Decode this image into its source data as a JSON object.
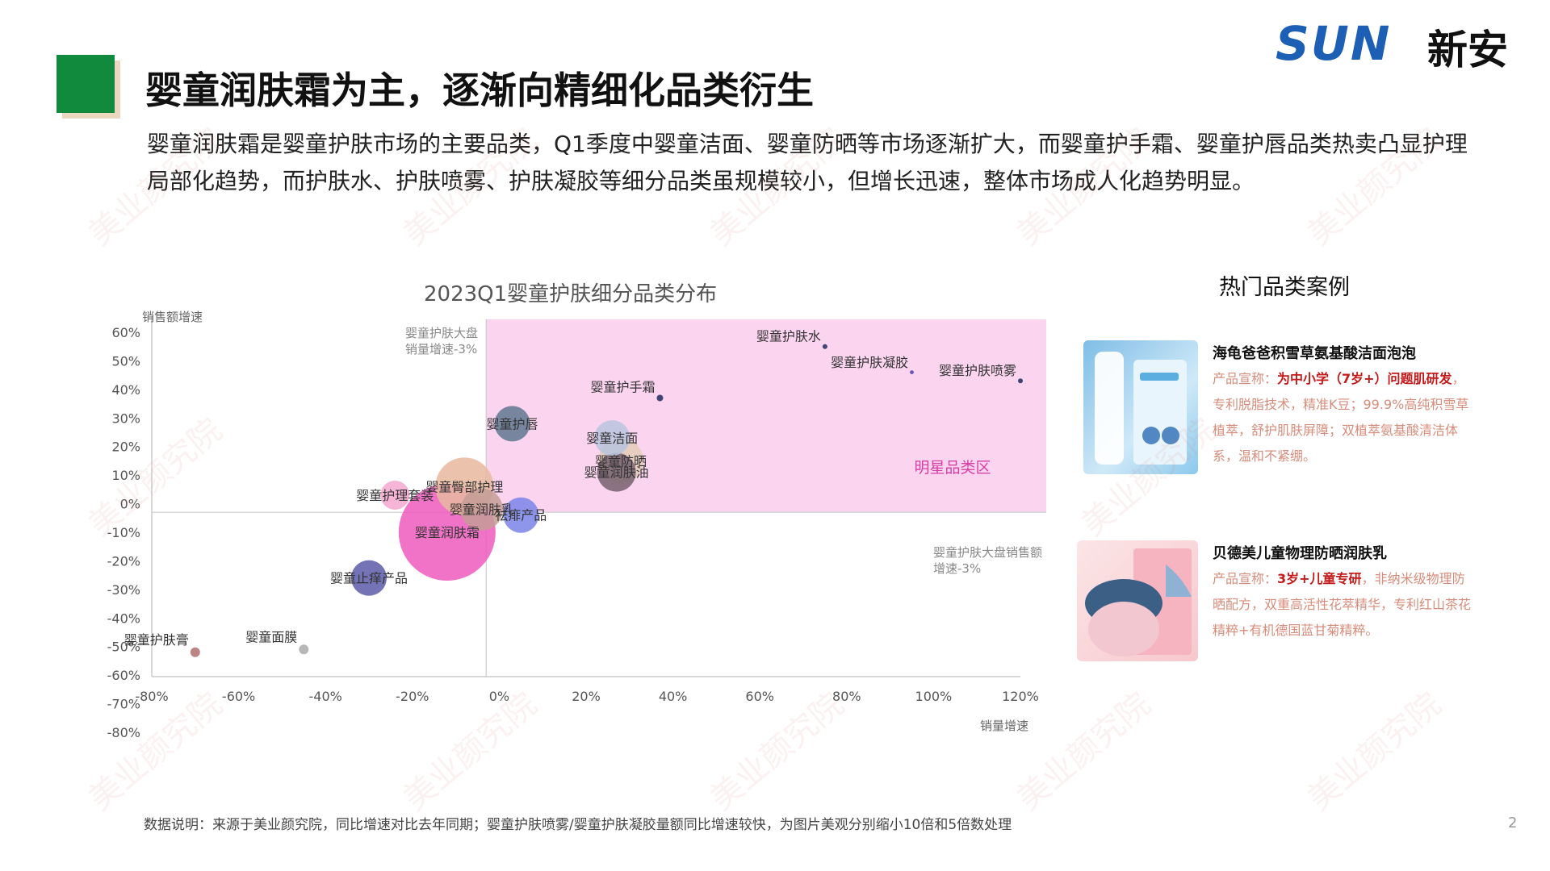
{
  "logo": {
    "brand": "SUN",
    "cn": "新安"
  },
  "title": "婴童润肤霜为主，逐渐向精细化品类衍生",
  "description": "婴童润肤霜是婴童护肤市场的主要品类，Q1季度中婴童洁面、婴童防晒等市场逐渐扩大，而婴童护手霜、婴童护唇品类热卖凸显护理局部化趋势，而护肤水、护肤喷雾、护肤凝胶等细分品类虽规模较小，但增长迅速，整体市场成人化趋势明显。",
  "watermark": "美业颜究院",
  "chart_data": {
    "type": "scatter",
    "title": "2023Q1婴童护肤细分品类分布",
    "xlabel": "销量增速",
    "ylabel": "销售额增速",
    "xlim": [
      -80,
      120
    ],
    "ylim": [
      -80,
      60
    ],
    "x_ticks": [
      "-80%",
      "-60%",
      "-40%",
      "-20%",
      "0%",
      "20%",
      "40%",
      "60%",
      "80%",
      "100%",
      "120%"
    ],
    "y_ticks": [
      "60%",
      "50%",
      "40%",
      "30%",
      "20%",
      "10%",
      "0%",
      "-10%",
      "-20%",
      "-30%",
      "-40%",
      "-50%",
      "-60%",
      "-70%",
      "-80%"
    ],
    "ref_x_label": "婴童护肤大盘销量增速-3%",
    "ref_x": -3,
    "ref_y_label": "婴童护肤大盘销售额增速-3%",
    "ref_y": -3,
    "zone_label": "明星品类区",
    "zone_color": "#fbd4ef",
    "points": [
      {
        "name": "婴童护肤水",
        "x": 75,
        "y": 55,
        "size": 1.5,
        "color": "#1f2a5c"
      },
      {
        "name": "婴童护肤喷雾",
        "x": 120,
        "y": 43,
        "size": 1.5,
        "color": "#1f2a5c"
      },
      {
        "name": "婴童护肤凝胶",
        "x": 95,
        "y": 46,
        "size": 1.2,
        "color": "#4a3fae"
      },
      {
        "name": "婴童护手霜",
        "x": 37,
        "y": 37,
        "size": 2,
        "color": "#1f2a5c"
      },
      {
        "name": "婴童护唇",
        "x": 3,
        "y": 28,
        "size": 11,
        "color": "#5f7791"
      },
      {
        "name": "婴童洁面",
        "x": 26,
        "y": 23,
        "size": 11,
        "color": "#b9c4de"
      },
      {
        "name": "婴童防晒",
        "x": 28,
        "y": 15,
        "size": 14,
        "color": "#e3cdb8"
      },
      {
        "name": "婴童润肤油",
        "x": 27,
        "y": 11,
        "size": 12,
        "color": "#75606f"
      },
      {
        "name": "婴童臀部护理",
        "x": -8,
        "y": 6,
        "size": 18,
        "color": "#e8b99f"
      },
      {
        "name": "婴童护理套装",
        "x": -24,
        "y": 3,
        "size": 9,
        "color": "#f5a8cf"
      },
      {
        "name": "婴童润肤乳",
        "x": -4,
        "y": -2,
        "size": 13,
        "color": "#c49c95"
      },
      {
        "name": "祛痱产品",
        "x": 5,
        "y": -4,
        "size": 11,
        "color": "#7a84e8"
      },
      {
        "name": "婴童润肤霜",
        "x": -12,
        "y": -10,
        "size": 30,
        "color": "#ef5bbd"
      },
      {
        "name": "婴童止痒产品",
        "x": -30,
        "y": -26,
        "size": 11,
        "color": "#5a5aa8"
      },
      {
        "name": "婴童面膜",
        "x": -45,
        "y": -51,
        "size": 3,
        "color": "#aaaaaa"
      },
      {
        "name": "婴童护肤膏",
        "x": -70,
        "y": -52,
        "size": 3,
        "color": "#b07070"
      }
    ]
  },
  "hot_section": {
    "title": "热门品类案例",
    "products": [
      {
        "name": "海龟爸爸积雪草氨基酸洁面泡泡",
        "claim_prefix": "产品宣称：",
        "claim_highlight": "为中小学（7岁+）问题肌研发",
        "claim_rest": "，专利脱脂技术，精准K豆；99.9%高纯积雪草植萃，舒护肌肤屏障；双植萃氨基酸清洁体系，温和不紧绷。"
      },
      {
        "name": "贝德美儿童物理防晒润肤乳",
        "claim_prefix": "产品宣称：",
        "claim_highlight": "3岁+儿童专研",
        "claim_rest": "，非纳米级物理防晒配方，双重高活性花萃精华，专利红山茶花精粹+有机德国蓝甘菊精粹。"
      }
    ]
  },
  "footnote": "数据说明：来源于美业颜究院，同比增速对比去年同期；婴童护肤喷雾/婴童护肤凝胶量额同比增速较快，为图片美观分别缩小10倍和5倍数处理",
  "page_number": "2"
}
